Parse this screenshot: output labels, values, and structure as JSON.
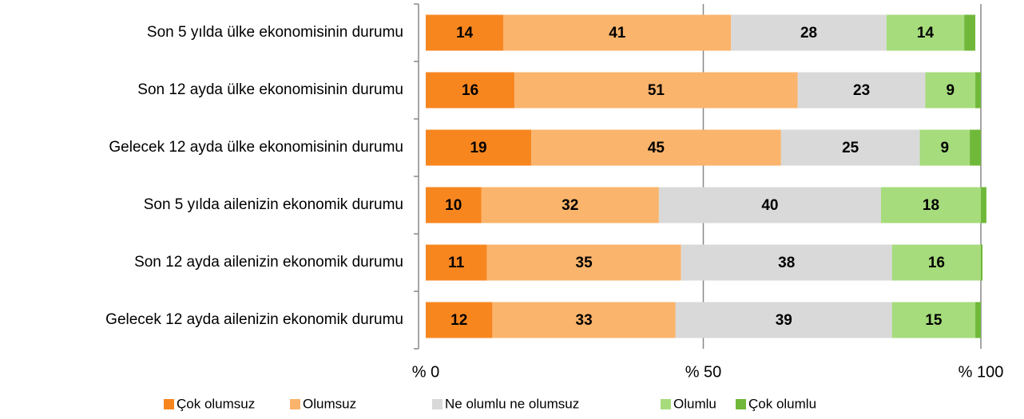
{
  "chart_data": {
    "type": "stacked_bar_horizontal",
    "categories": [
      "Son 5 yılda ülke ekonomisinin durumu",
      "Son 12 ayda ülke ekonomisinin durumu",
      "Gelecek 12 ayda ülke ekonomisinin durumu",
      "Son 5 yılda ailenizin ekonomik durumu",
      "Son 12 ayda ailenizin ekonomik durumu",
      "Gelecek 12 ayda ailenizin ekonomik durumu"
    ],
    "series": [
      {
        "name": "Çok olumsuz",
        "color": "#f7861f",
        "values": [
          14,
          16,
          19,
          10,
          11,
          12
        ]
      },
      {
        "name": "Olumsuz",
        "color": "#fab46c",
        "values": [
          41,
          51,
          45,
          32,
          35,
          33
        ]
      },
      {
        "name": "Ne olumlu ne olumsuz",
        "color": "#d9d9d9",
        "values": [
          28,
          23,
          25,
          40,
          38,
          39
        ]
      },
      {
        "name": "Olumlu",
        "color": "#a6dc7c",
        "values": [
          14,
          9,
          9,
          18,
          16,
          15
        ]
      },
      {
        "name": "Çok olumlu",
        "color": "#70b83a",
        "values": [
          2,
          1,
          2,
          1,
          0.3,
          1
        ]
      }
    ],
    "xlim": [
      0,
      100
    ],
    "xticks": [
      {
        "value": 0,
        "label": "% 0"
      },
      {
        "value": 50,
        "label": "% 50"
      },
      {
        "value": 100,
        "label": "% 100"
      }
    ],
    "grid": true
  }
}
